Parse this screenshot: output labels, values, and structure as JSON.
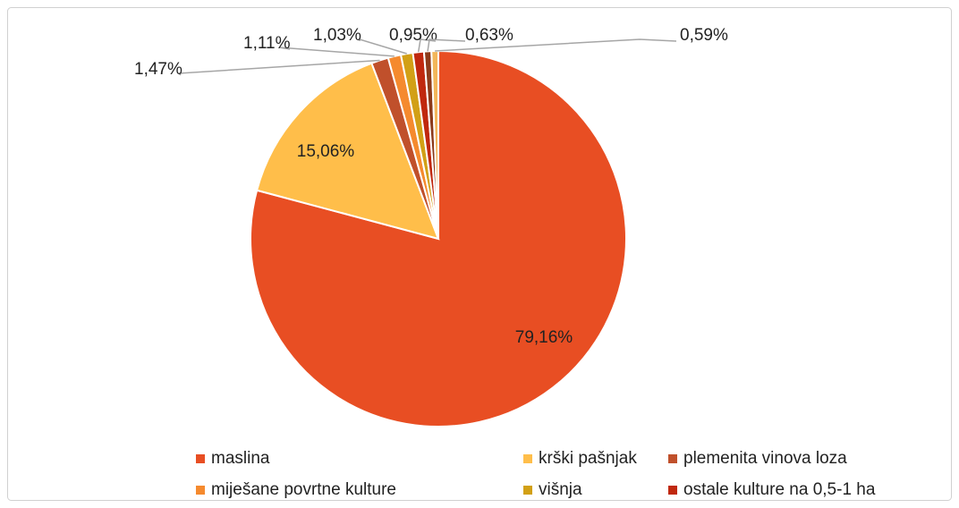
{
  "chart_data": {
    "type": "pie",
    "categories": [
      "maslina",
      "krški pašnjak",
      "plemenita vinova loza",
      "miješane povrtne kulture",
      "višnja",
      "ostale kulture na 0,5-1 ha",
      null,
      null
    ],
    "values": [
      79.16,
      15.06,
      1.47,
      1.11,
      1.03,
      0.95,
      0.63,
      0.59
    ],
    "value_labels": [
      "79,16%",
      "15,06%",
      "1,47%",
      "1,11%",
      "1,03%",
      "0,95%",
      "0,63%",
      "0,59%"
    ],
    "colors": [
      "#e84e23",
      "#ffbe4a",
      "#c0502b",
      "#f58a2e",
      "#d2a016",
      "#c0280e",
      "#8c3a1a",
      "#f2b65a"
    ],
    "legend": "bottom"
  }
}
